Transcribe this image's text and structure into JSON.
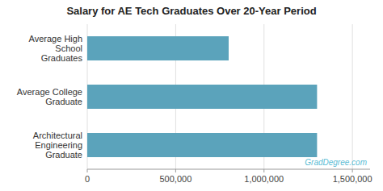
{
  "chart_data": {
    "type": "bar",
    "orientation": "horizontal",
    "title": "Salary for AE Tech Graduates Over 20-Year Period",
    "categories": [
      "Average High\nSchool\nGraduates",
      "Average College\nGraduate",
      "Architectural\nEngineering\nGraduate"
    ],
    "values": [
      800000,
      1300000,
      1300000
    ],
    "color": "#5ba3bb",
    "xlim": [
      0,
      1600000
    ],
    "xticks": [
      0,
      {
        "value": 500000,
        "label": "500,000"
      },
      {
        "value": 1000000,
        "label": "1,000,000"
      },
      {
        "value": 1500000,
        "label": "1,500,000"
      }
    ],
    "grid": true,
    "annotations": [
      "GradDegree.com"
    ]
  }
}
